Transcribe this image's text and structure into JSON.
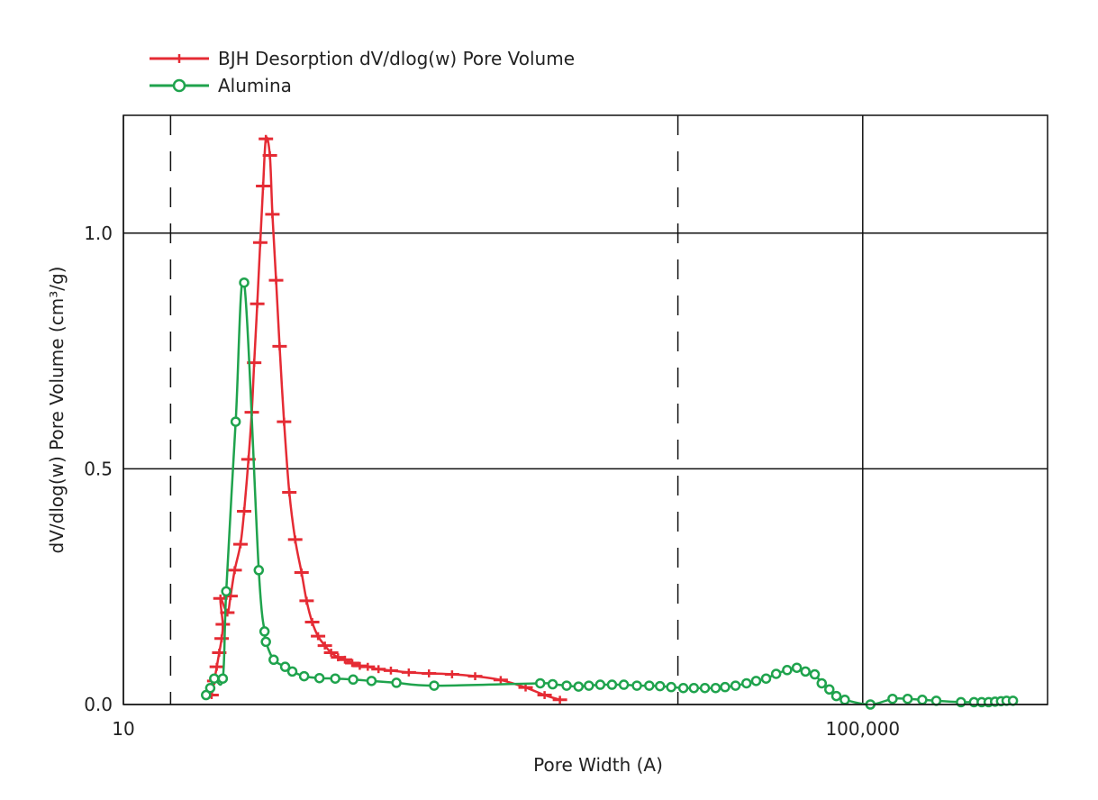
{
  "chart_data": {
    "type": "line",
    "title": "",
    "xlabel": "Pore Width (A)",
    "ylabel": "dV/dlog(w) Pore Volume (cm³/g)",
    "x_scale": "log",
    "xlim": [
      10,
      1000000
    ],
    "ylim": [
      0,
      1.25
    ],
    "x_ticks": [
      {
        "value": 10,
        "label": "10"
      },
      {
        "value": 100000,
        "label": "100,000"
      }
    ],
    "y_ticks": [
      {
        "value": 0.0,
        "label": "0.0"
      },
      {
        "value": 0.5,
        "label": "0.5"
      },
      {
        "value": 1.0,
        "label": "1.0"
      }
    ],
    "grid": true,
    "dashed_gridlines_x": [
      18,
      10000
    ],
    "legend_position": "top-left",
    "series": [
      {
        "name": "BJH Desorption dV/dlog(w) Pore Volume",
        "color": "#e52b34",
        "marker": "plus",
        "points": [
          [
            30.0,
            0.02
          ],
          [
            31.0,
            0.05
          ],
          [
            32.0,
            0.08
          ],
          [
            33.0,
            0.11
          ],
          [
            34.0,
            0.14
          ],
          [
            34.5,
            0.17
          ],
          [
            33.5,
            0.225
          ],
          [
            36.5,
            0.195
          ],
          [
            38.0,
            0.23
          ],
          [
            40.0,
            0.285
          ],
          [
            43.0,
            0.34
          ],
          [
            45.0,
            0.41
          ],
          [
            47.5,
            0.52
          ],
          [
            49.5,
            0.62
          ],
          [
            51.0,
            0.725
          ],
          [
            53.0,
            0.85
          ],
          [
            55.0,
            0.98
          ],
          [
            57.0,
            1.1
          ],
          [
            59.0,
            1.2
          ],
          [
            62.0,
            1.165
          ],
          [
            64.0,
            1.04
          ],
          [
            67.0,
            0.9
          ],
          [
            70.0,
            0.76
          ],
          [
            74.0,
            0.6
          ],
          [
            79.0,
            0.45
          ],
          [
            85.0,
            0.35
          ],
          [
            92.0,
            0.28
          ],
          [
            98.0,
            0.22
          ],
          [
            105.0,
            0.175
          ],
          [
            113.0,
            0.145
          ],
          [
            123.0,
            0.125
          ],
          [
            133.0,
            0.11
          ],
          [
            145.0,
            0.1
          ],
          [
            158.0,
            0.095
          ],
          [
            173.0,
            0.088
          ],
          [
            190.0,
            0.082
          ],
          [
            210.0,
            0.08
          ],
          [
            240.0,
            0.075
          ],
          [
            280.0,
            0.072
          ],
          [
            350.0,
            0.068
          ],
          [
            450.0,
            0.066
          ],
          [
            600.0,
            0.064
          ],
          [
            800.0,
            0.06
          ],
          [
            1100.0,
            0.052
          ],
          [
            1500.0,
            0.036
          ],
          [
            1900.0,
            0.02
          ],
          [
            2300.0,
            0.01
          ]
        ]
      },
      {
        "name": "Alumina",
        "color": "#1fa34d",
        "marker": "circle",
        "points": [
          [
            28.0,
            0.02
          ],
          [
            29.5,
            0.035
          ],
          [
            31.0,
            0.055
          ],
          [
            34.5,
            0.055
          ],
          [
            36.0,
            0.24
          ],
          [
            40.5,
            0.6
          ],
          [
            45.0,
            0.895
          ],
          [
            54.0,
            0.285
          ],
          [
            58.0,
            0.155
          ],
          [
            59.0,
            0.133
          ],
          [
            65.0,
            0.095
          ],
          [
            75.0,
            0.08
          ],
          [
            82.0,
            0.07
          ],
          [
            95.0,
            0.06
          ],
          [
            115.0,
            0.056
          ],
          [
            140.0,
            0.055
          ],
          [
            175.0,
            0.053
          ],
          [
            220.0,
            0.05
          ],
          [
            300.0,
            0.046
          ],
          [
            480.0,
            0.04
          ],
          [
            1800.0,
            0.045
          ],
          [
            2100.0,
            0.043
          ],
          [
            2500.0,
            0.04
          ],
          [
            2900.0,
            0.038
          ],
          [
            3300.0,
            0.04
          ],
          [
            3800.0,
            0.042
          ],
          [
            4400.0,
            0.042
          ],
          [
            5100.0,
            0.042
          ],
          [
            6000.0,
            0.04
          ],
          [
            7000.0,
            0.04
          ],
          [
            8000.0,
            0.039
          ],
          [
            9200.0,
            0.037
          ],
          [
            10700.0,
            0.035
          ],
          [
            12200.0,
            0.035
          ],
          [
            14000.0,
            0.035
          ],
          [
            16000.0,
            0.035
          ],
          [
            18000.0,
            0.037
          ],
          [
            20500.0,
            0.04
          ],
          [
            23500.0,
            0.045
          ],
          [
            26500.0,
            0.05
          ],
          [
            30000.0,
            0.055
          ],
          [
            34000.0,
            0.065
          ],
          [
            39000.0,
            0.073
          ],
          [
            44000.0,
            0.078
          ],
          [
            49000.0,
            0.07
          ],
          [
            55000.0,
            0.064
          ],
          [
            60000.0,
            0.045
          ],
          [
            66000.0,
            0.032
          ],
          [
            72000.0,
            0.018
          ],
          [
            80000.0,
            0.01
          ],
          [
            110000.0,
            0.0
          ],
          [
            145000.0,
            0.012
          ],
          [
            175000.0,
            0.012
          ],
          [
            210000.0,
            0.01
          ],
          [
            250000.0,
            0.008
          ],
          [
            340000.0,
            0.005
          ],
          [
            400000.0,
            0.005
          ],
          [
            440000.0,
            0.005
          ],
          [
            480000.0,
            0.005
          ],
          [
            520000.0,
            0.006
          ],
          [
            560000.0,
            0.007
          ],
          [
            600000.0,
            0.008
          ],
          [
            650000.0,
            0.008
          ]
        ]
      }
    ]
  }
}
